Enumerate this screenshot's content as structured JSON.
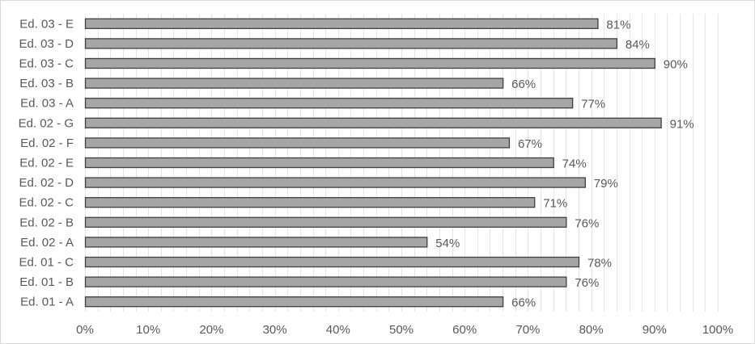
{
  "chart_data": {
    "type": "bar",
    "orientation": "horizontal",
    "title": "",
    "xlabel": "",
    "ylabel": "",
    "xlim": [
      0,
      100
    ],
    "x_ticks": [
      "0%",
      "10%",
      "20%",
      "30%",
      "40%",
      "50%",
      "60%",
      "70%",
      "80%",
      "90%",
      "100%"
    ],
    "categories": [
      "Ed. 01 - A",
      "Ed. 01 - B",
      "Ed. 01 - C",
      "Ed. 02 - A",
      "Ed. 02 - B",
      "Ed. 02 - C",
      "Ed. 02 - D",
      "Ed. 02 - E",
      "Ed. 02 - F",
      "Ed. 02 - G",
      "Ed. 03 - A",
      "Ed. 03 - B",
      "Ed. 03 - C",
      "Ed. 03 - D",
      "Ed. 03 - E"
    ],
    "values": [
      66,
      76,
      78,
      54,
      76,
      71,
      79,
      74,
      67,
      91,
      77,
      66,
      90,
      84,
      81
    ],
    "data_labels": [
      "66%",
      "76%",
      "78%",
      "54%",
      "76%",
      "71%",
      "79%",
      "74%",
      "67%",
      "91%",
      "77%",
      "66%",
      "90%",
      "84%",
      "81%"
    ],
    "grid": "vertical minor",
    "legend": "none",
    "colors": {
      "bar_fill": "#a6a6a6",
      "bar_stroke": "#404040",
      "grid": "#e6e6e6",
      "text": "#595959"
    }
  }
}
